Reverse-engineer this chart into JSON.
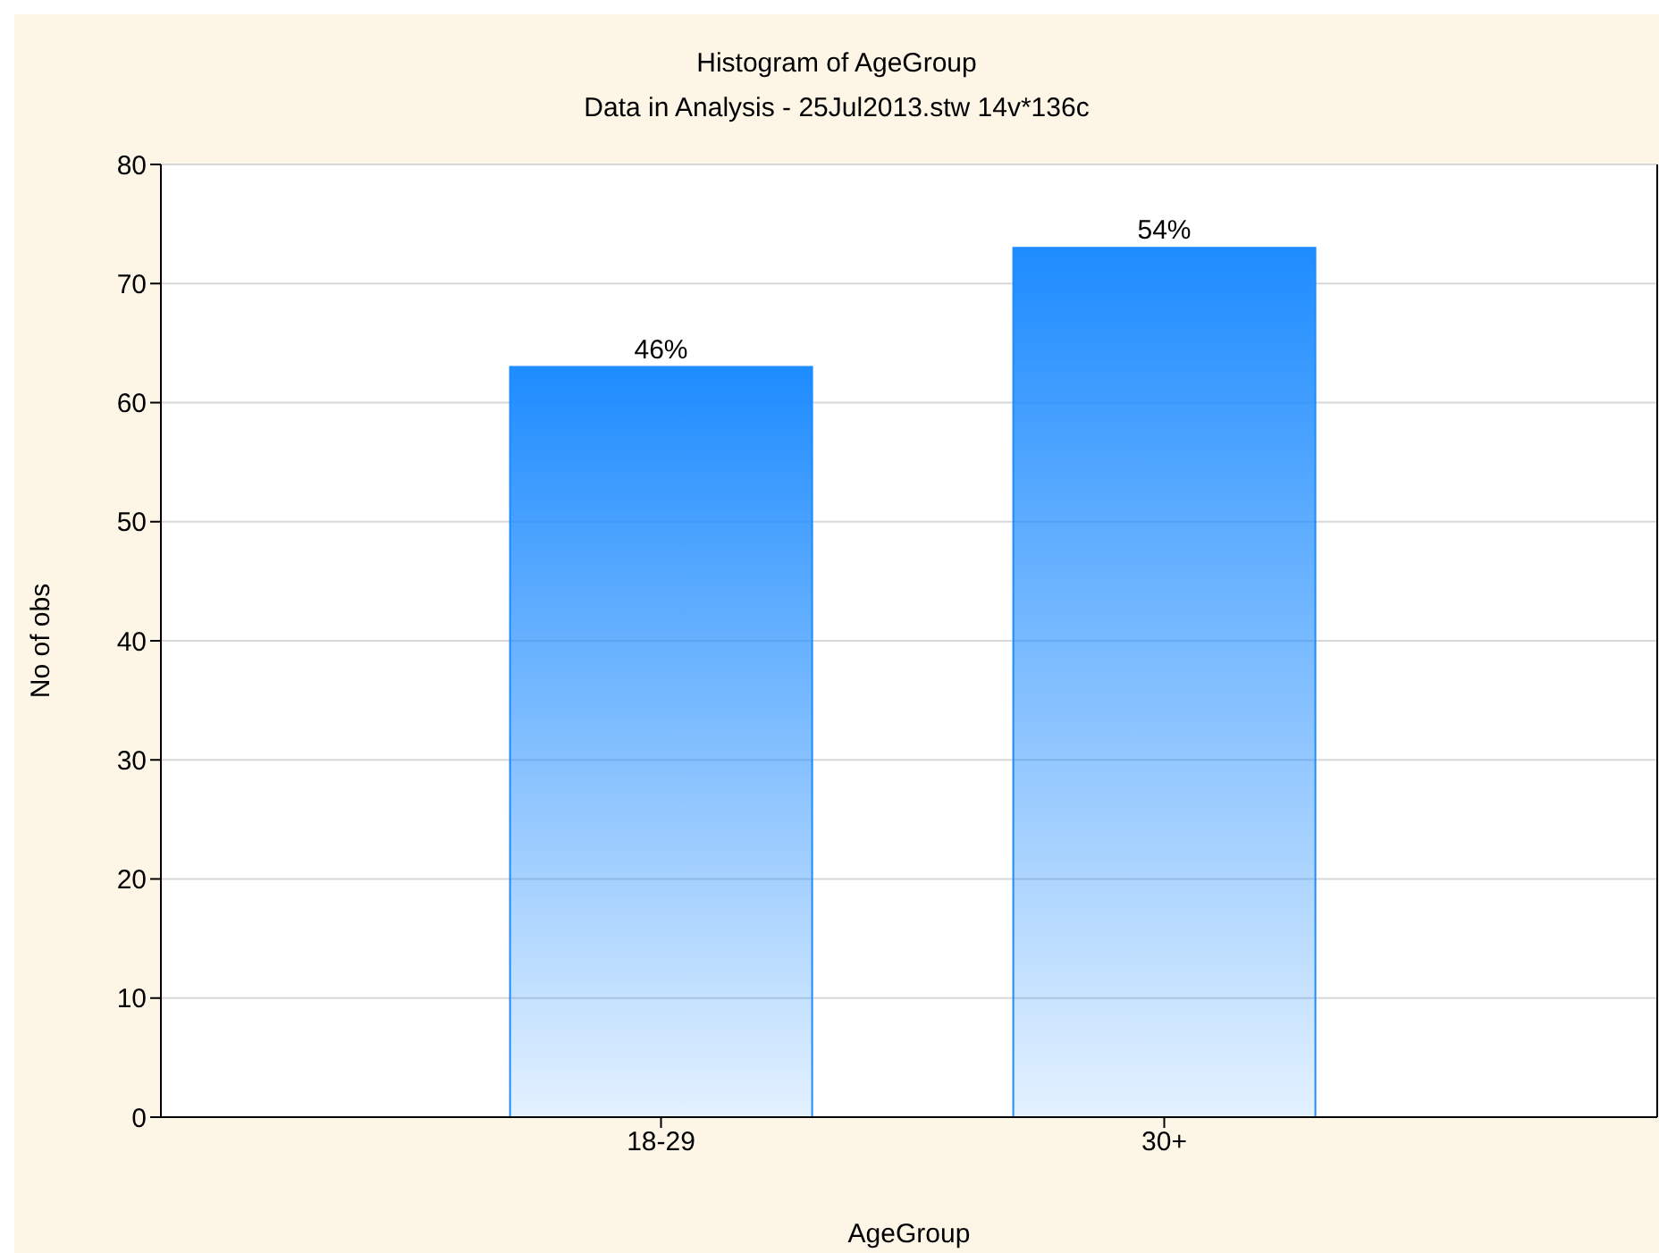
{
  "chart_data": {
    "type": "bar",
    "title": "Histogram of AgeGroup",
    "subtitle": "Data in Analysis - 25Jul2013.stw 14v*136c",
    "xlabel": "AgeGroup",
    "ylabel": "No of obs",
    "categories": [
      "18-29",
      "30+"
    ],
    "values": [
      63,
      73
    ],
    "color": "#1e8cff",
    "annotations": [
      {
        "text": "46%",
        "x": "18-29",
        "y": 63
      },
      {
        "text": "54%",
        "x": "30+",
        "y": 73
      }
    ],
    "ylim": [
      0,
      80
    ],
    "yticks": [
      0,
      10,
      20,
      30,
      40,
      50,
      60,
      70,
      80
    ],
    "grid": "y",
    "legend": false
  }
}
